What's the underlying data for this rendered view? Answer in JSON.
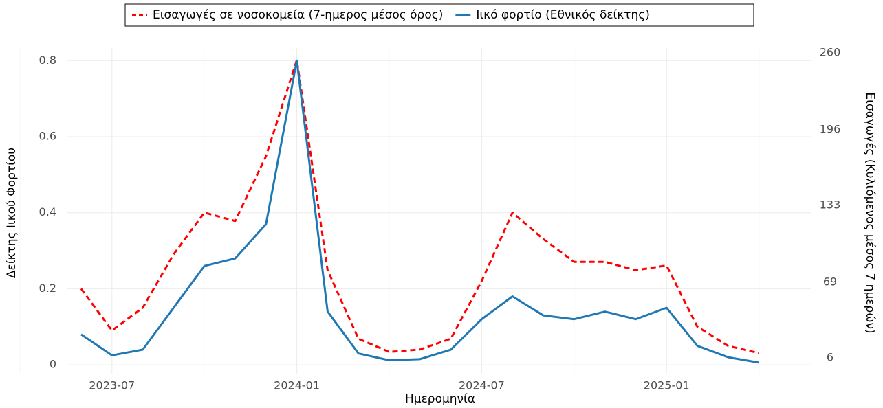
{
  "chart_data": {
    "type": "line",
    "x_label": "Ημερομηνία",
    "y_label": "Δείκτης Ιικού Φορτίου",
    "y2_label": "Εισαγωγές (Κυλιόμενος μέσος 7 ημερών)",
    "x": [
      "2023-06",
      "2023-07",
      "2023-08",
      "2023-09",
      "2023-10",
      "2023-11",
      "2023-12",
      "2024-01",
      "2024-02",
      "2024-03",
      "2024-04",
      "2024-05",
      "2024-06",
      "2024-07",
      "2024-08",
      "2024-09",
      "2024-10",
      "2024-11",
      "2024-12",
      "2025-01",
      "2025-02",
      "2025-03",
      "2025-04"
    ],
    "xticks": [
      "2023-07",
      "2024-01",
      "2024-07",
      "2025-01"
    ],
    "series": [
      {
        "name": "Εισαγωγές σε νοσοκομεία (7-ημερος μέσος όρος)",
        "color": "#ff0000",
        "dash": true,
        "axis": "y2",
        "values": [
          63.6,
          28.8,
          47.8,
          92.2,
          127,
          120,
          174,
          254,
          79,
          22,
          11,
          13,
          22,
          70,
          127,
          105,
          86,
          86,
          79,
          83,
          32,
          16,
          10
        ]
      },
      {
        "name": "Ιικό φορτίο (Εθνικός δείκτης)",
        "color": "#1f78b4",
        "dash": false,
        "values": [
          0.08,
          0.025,
          0.04,
          0.15,
          0.26,
          0.28,
          0.37,
          0.8,
          0.14,
          0.03,
          0.012,
          0.015,
          0.04,
          0.12,
          0.18,
          0.13,
          0.12,
          0.14,
          0.12,
          0.15,
          0.05,
          0.02,
          0.006
        ]
      }
    ],
    "ylim": [
      -0.025,
      0.833
    ],
    "yticks": [
      0.0,
      0.2,
      0.4,
      0.6,
      0.8
    ],
    "y2lim": [
      -7.7,
      264
    ],
    "y2ticks": [
      6,
      69,
      133,
      196,
      260
    ],
    "grid": true
  }
}
